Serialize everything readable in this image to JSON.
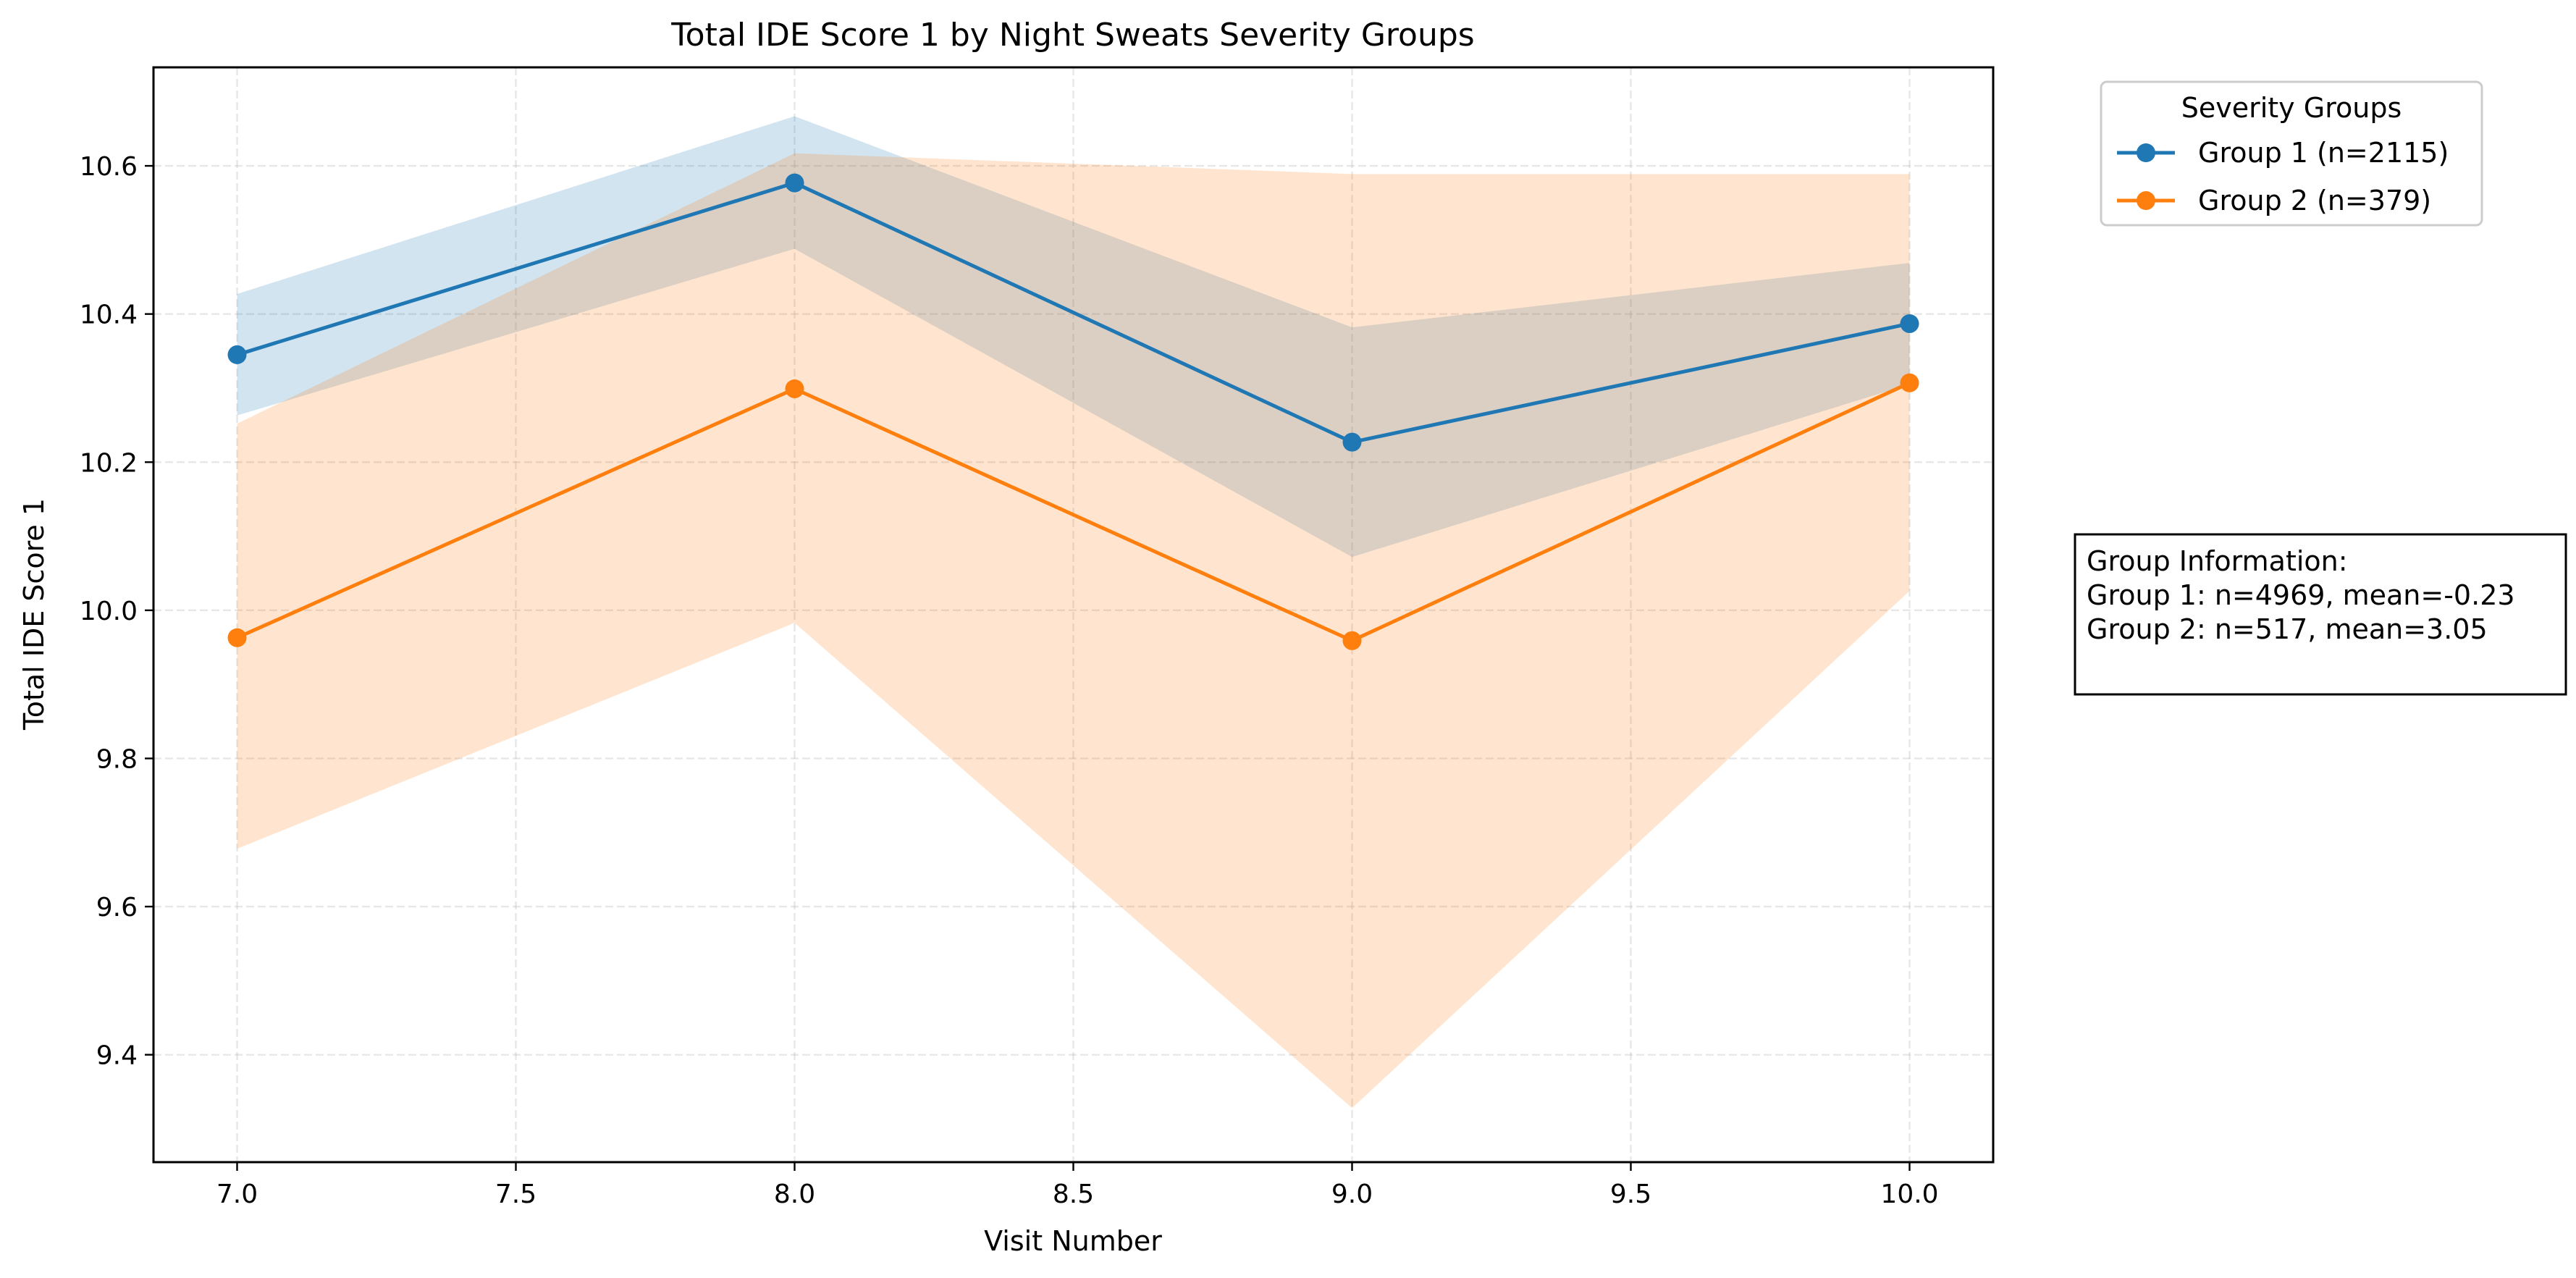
{
  "chart_data": {
    "type": "line",
    "title": "Total IDE Score 1 by Night Sweats Severity Groups",
    "xlabel": "Visit Number",
    "ylabel": "Total IDE Score 1",
    "xlim": [
      6.85,
      10.15
    ],
    "ylim": [
      9.255,
      10.733
    ],
    "x_ticks": [
      7.0,
      7.5,
      8.0,
      8.5,
      9.0,
      9.5,
      10.0
    ],
    "x_tick_labels": [
      "7.0",
      "7.5",
      "8.0",
      "8.5",
      "9.0",
      "9.5",
      "10.0"
    ],
    "y_ticks": [
      9.4,
      9.6,
      9.8,
      10.0,
      10.2,
      10.4,
      10.6
    ],
    "y_tick_labels": [
      "9.4",
      "9.6",
      "9.8",
      "10.0",
      "10.2",
      "10.4",
      "10.6"
    ],
    "grid": true,
    "legend": {
      "title": "Severity Groups",
      "placement": "outside-top-right"
    },
    "x": [
      7,
      8,
      9,
      10
    ],
    "series": [
      {
        "name": "Group 1 (n=2115)",
        "color": "#1f77b4",
        "values": [
          10.345,
          10.577,
          10.227,
          10.387
        ],
        "lower": [
          10.263,
          10.488,
          10.072,
          10.305
        ],
        "upper": [
          10.427,
          10.667,
          10.382,
          10.469
        ]
      },
      {
        "name": "Group 2 (n=379)",
        "color": "#ff7f0e",
        "values": [
          9.963,
          10.299,
          9.959,
          10.307
        ],
        "lower": [
          9.678,
          9.983,
          9.328,
          10.026
        ],
        "upper": [
          10.252,
          10.617,
          10.589,
          10.589
        ]
      }
    ],
    "annotation": {
      "lines": [
        "Group Information:",
        "Group 1: n=4969, mean=-0.23",
        "Group 2: n=517, mean=3.05"
      ],
      "placement": "right-middle"
    }
  }
}
